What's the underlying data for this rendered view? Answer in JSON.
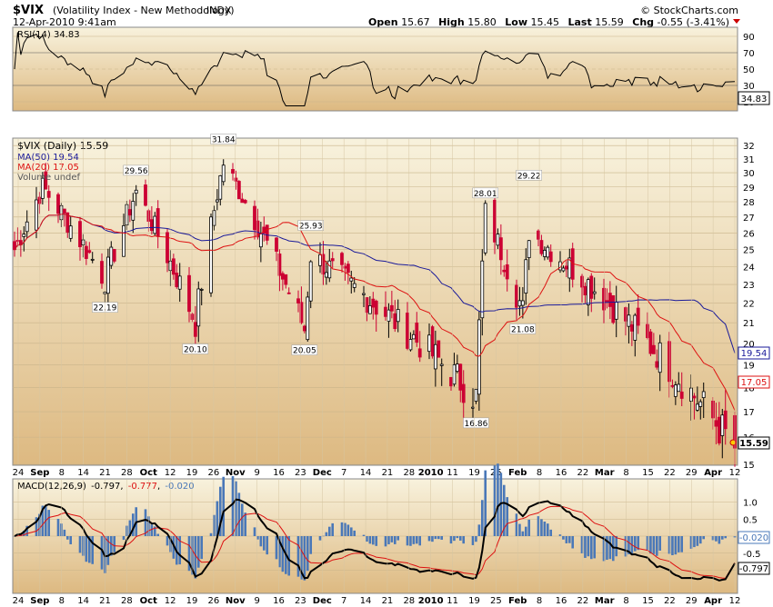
{
  "header": {
    "symbol": "$VIX",
    "name": "(Volatility Index - New Methodology)",
    "exchange": "INDX",
    "datetime": "12-Apr-2010 9:41am",
    "copyright": "© StockCharts.com",
    "quote": {
      "open_label": "Open",
      "open": "15.67",
      "high_label": "High",
      "high": "15.80",
      "low_label": "Low",
      "low": "15.45",
      "last_label": "Last",
      "last": "15.59",
      "chg_label": "Chg",
      "chg": "-0.55 (-3.41%)"
    }
  },
  "rsi_panel": {
    "legend": "RSI(14) 34.83",
    "current": "34.83",
    "yticks": [
      "90",
      "70",
      "50",
      "30",
      "10"
    ]
  },
  "price_panel": {
    "legend_price": "$VIX (Daily) 15.59",
    "legend_ma50": "MA(50) 19.54",
    "legend_ma20": "MA(20) 17.05",
    "legend_volume": "Volume undef",
    "tags": {
      "ma50": "19.54",
      "ma20": "17.05",
      "last": "15.59"
    },
    "yticks": [
      "32",
      "31",
      "30",
      "29",
      "28",
      "27",
      "26",
      "25",
      "24",
      "23",
      "22",
      "21",
      "20",
      "19",
      "18",
      "17",
      "16",
      "15"
    ],
    "annotations": [
      {
        "text": "29.56",
        "date": "2009-10-02",
        "value": 29.56
      },
      {
        "text": "22.19",
        "date": "2009-09-22",
        "value": 22.19
      },
      {
        "text": "31.84",
        "date": "2009-10-30",
        "value": 31.84
      },
      {
        "text": "20.10",
        "date": "2009-10-21",
        "value": 20.1
      },
      {
        "text": "25.93",
        "date": "2009-11-27",
        "value": 25.93
      },
      {
        "text": "20.05",
        "date": "2009-11-25",
        "value": 20.05
      },
      {
        "text": "16.86",
        "date": "2010-01-19",
        "value": 16.86
      },
      {
        "text": "28.01",
        "date": "2010-01-22",
        "value": 28.01
      },
      {
        "text": "29.22",
        "date": "2010-02-05",
        "value": 29.22
      },
      {
        "text": "21.08",
        "date": "2010-02-03",
        "value": 21.08
      }
    ]
  },
  "macd_panel": {
    "legend_label": "MACD(12,26,9)",
    "macd": "-0.797",
    "signal": "-0.777",
    "histogram": "-0.020",
    "yticks": [
      "1.0",
      "0.5",
      "0.0",
      "-0.5",
      "-1.0"
    ],
    "tags": {
      "hist": "-0.020",
      "macd": "-0.797"
    }
  },
  "x_axis": {
    "labels": [
      "24",
      "Sep",
      "8",
      "14",
      "21",
      "28",
      "Oct",
      "12",
      "19",
      "26",
      "Nov",
      "9",
      "16",
      "23",
      "Dec",
      "7",
      "14",
      "21",
      "28",
      "2010",
      "11",
      "19",
      "25",
      "Feb",
      "8",
      "16",
      "22",
      "Mar",
      "8",
      "15",
      "22",
      "29",
      "Apr",
      "12"
    ],
    "bold": [
      "Sep",
      "Oct",
      "Nov",
      "Dec",
      "2010",
      "Feb",
      "Mar",
      "Apr"
    ]
  },
  "colors": {
    "panel_bg_top": "#f7f0d9",
    "panel_bg_bottom": "#dcb97f",
    "up_candle": "#000000",
    "down_candle": "#cc0033",
    "ma50": "#1a1a99",
    "ma20": "#dd1111",
    "macd_line": "#000000",
    "signal_line": "#dd1111",
    "histogram": "#4a78b8",
    "chg_negative": "#cc0000"
  },
  "chart_data": {
    "type": "candlestick",
    "title": "$VIX (Volatility Index - New Methodology) INDX",
    "period": "Daily",
    "x_start": "2009-08-24",
    "x_end": "2010-04-12",
    "ylim": [
      15,
      32.5
    ],
    "scale": "log",
    "ohlc_keypoints": [
      {
        "date": "2009-08-24",
        "close": 25.0
      },
      {
        "date": "2009-09-02",
        "close": 29.0,
        "high": 29.6
      },
      {
        "date": "2009-09-22",
        "low": 22.19,
        "close": 23.3
      },
      {
        "date": "2009-10-02",
        "high": 29.56,
        "close": 28.7
      },
      {
        "date": "2009-10-21",
        "low": 20.1,
        "close": 21.0
      },
      {
        "date": "2009-10-30",
        "high": 31.84,
        "close": 30.7
      },
      {
        "date": "2009-11-25",
        "low": 20.05,
        "close": 20.7
      },
      {
        "date": "2009-11-27",
        "high": 25.93,
        "close": 24.7
      },
      {
        "date": "2010-01-19",
        "low": 16.86,
        "close": 17.6
      },
      {
        "date": "2010-01-22",
        "high": 28.01,
        "close": 27.3
      },
      {
        "date": "2010-02-03",
        "low": 21.08,
        "close": 21.6
      },
      {
        "date": "2010-02-05",
        "high": 29.22,
        "close": 26.1
      },
      {
        "date": "2010-04-12",
        "open": 15.67,
        "high": 15.8,
        "low": 15.45,
        "close": 15.59
      }
    ],
    "series": [
      {
        "name": "MA(50)",
        "last": 19.54
      },
      {
        "name": "MA(20)",
        "last": 17.05
      },
      {
        "name": "RSI(14)",
        "last": 34.83
      },
      {
        "name": "MACD(12,26,9)",
        "last": -0.797,
        "signal": -0.777,
        "histogram": -0.02
      }
    ]
  }
}
